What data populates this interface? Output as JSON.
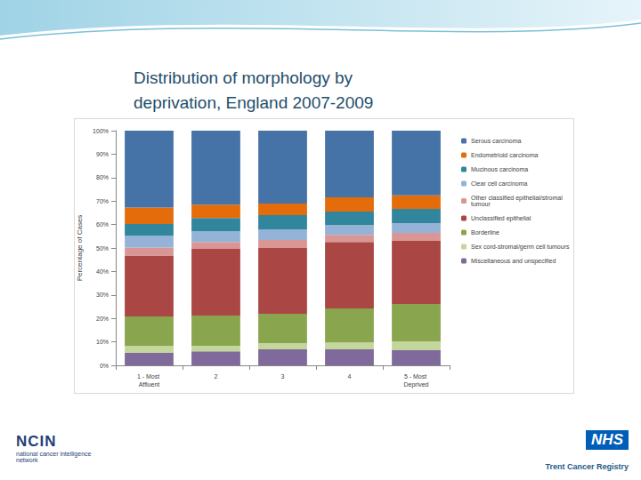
{
  "chart_data": {
    "type": "bar",
    "title": "Distribution of morphology by deprivation, England 2007-2009",
    "y_label": "Percentage of Cases",
    "categories": [
      "1 - Most Affluent",
      "2",
      "3",
      "4",
      "5 - Most Deprived"
    ],
    "series": [
      {
        "name": "Serous carcinoma",
        "color": "#4572a7",
        "values": [
          32.8,
          31.5,
          31.1,
          28.4,
          27.6
        ]
      },
      {
        "name": "Endometrioid carcinoma",
        "color": "#e46c0a",
        "values": [
          7,
          5.7,
          4.9,
          6.1,
          5.7
        ]
      },
      {
        "name": "Mucinous carcinoma",
        "color": "#31859c",
        "values": [
          5,
          5.7,
          6.1,
          5.7,
          6.1
        ]
      },
      {
        "name": "Clear cell carcinoma",
        "color": "#95b3d7",
        "values": [
          5,
          4.5,
          4.5,
          4.2,
          4.2
        ]
      },
      {
        "name": "Other classified epithelial/stromal tumour",
        "color": "#d99694",
        "values": [
          3.4,
          3,
          3.4,
          3,
          3.4
        ]
      },
      {
        "name": "Unclassified epithelial",
        "color": "#aa4643",
        "values": [
          26,
          28.4,
          28,
          28.4,
          26.9
        ]
      },
      {
        "name": "Borderline",
        "color": "#89a54e",
        "values": [
          12.5,
          12.9,
          12.5,
          14.4,
          15.9
        ]
      },
      {
        "name": "Sex cord-stromal/germ cell tumours",
        "color": "#c3d69b",
        "values": [
          3,
          2.3,
          2.7,
          3,
          3.8
        ]
      },
      {
        "name": "Miscellaneous and unspecified",
        "color": "#80699b",
        "values": [
          5.3,
          6,
          6.8,
          6.8,
          6.4
        ]
      }
    ],
    "ylim": [
      0,
      100
    ],
    "yticks": [
      {
        "value": 0,
        "label": "0%"
      },
      {
        "value": 10,
        "label": "10%"
      },
      {
        "value": 20,
        "label": "20%"
      },
      {
        "value": 30,
        "label": "30%"
      },
      {
        "value": 40,
        "label": "40%"
      },
      {
        "value": 50,
        "label": "50%"
      },
      {
        "value": 60,
        "label": "60%"
      },
      {
        "value": 70,
        "label": "70%"
      },
      {
        "value": 80,
        "label": "80%"
      },
      {
        "value": 90,
        "label": "90%"
      },
      {
        "value": 100,
        "label": "100%"
      }
    ],
    "stacked": true,
    "grid": false,
    "legend": "right",
    "data_labels": false
  },
  "logos": {
    "left": [
      "NCIN",
      "national cancer intelligence network"
    ],
    "right": [
      "NHS",
      "Trent Cancer Registry"
    ]
  }
}
